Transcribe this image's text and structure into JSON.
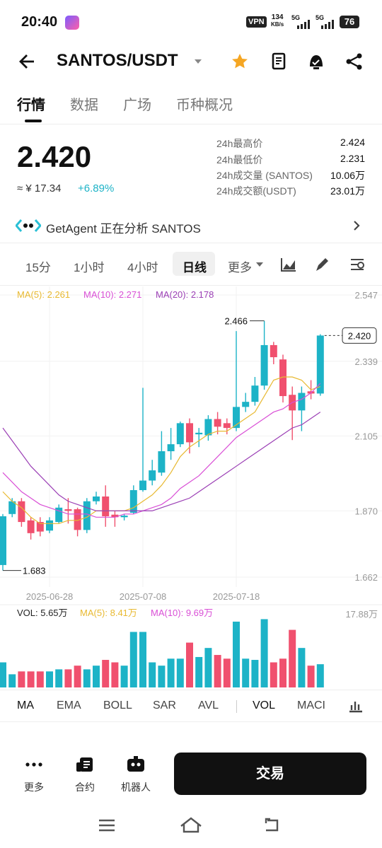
{
  "status_bar": {
    "time": "20:40",
    "vpn": "VPN",
    "speed": "134",
    "speed_unit": "KB/s",
    "net1": "5G",
    "net2": "5G",
    "battery": "76"
  },
  "header": {
    "pair": "SANTOS/USDT"
  },
  "tabs": [
    "行情",
    "数据",
    "广场",
    "币种概况"
  ],
  "price": {
    "last": "2.420",
    "cny": "≈ ¥ 17.34",
    "change": "+6.89%"
  },
  "stats": [
    {
      "label": "24h最高价",
      "value": "2.424"
    },
    {
      "label": "24h最低价",
      "value": "2.231"
    },
    {
      "label": "24h成交量 (SANTOS)",
      "value": "10.06万"
    },
    {
      "label": "24h成交额(USDT)",
      "value": "23.01万"
    }
  ],
  "agent_banner": "GetAgent 正在分析 SANTOS",
  "intervals": [
    "15分",
    "1小时",
    "4小时",
    "日线",
    "更多"
  ],
  "chart": {
    "type": "candlestick",
    "categories": [
      null,
      null,
      null,
      null,
      null,
      "2025-06-28",
      null,
      null,
      null,
      null,
      null,
      null,
      null,
      null,
      null,
      "2025-07-08",
      null,
      null,
      null,
      null,
      null,
      null,
      null,
      null,
      null,
      "2025-07-18",
      null,
      null,
      null,
      null,
      null,
      null,
      null,
      null,
      null
    ],
    "candles": {
      "open": [
        1.7,
        1.86,
        1.9,
        1.84,
        1.835,
        1.808,
        1.835,
        1.875,
        1.875,
        1.81,
        1.9,
        1.915,
        1.858,
        1.85,
        1.864,
        1.935,
        1.965,
        1.99,
        2.057,
        2.079,
        2.145,
        2.11,
        2.107,
        2.158,
        2.145,
        2.13,
        2.196,
        2.212,
        2.263,
        2.39,
        2.345,
        2.234,
        2.185,
        2.245,
        2.238
      ],
      "high": [
        1.86,
        1.91,
        1.91,
        1.85,
        1.85,
        1.85,
        1.89,
        1.91,
        1.88,
        1.91,
        1.93,
        1.95,
        1.87,
        1.86,
        1.95,
        2.256,
        2.03,
        2.12,
        2.13,
        2.15,
        2.16,
        2.13,
        2.17,
        2.18,
        2.16,
        2.434,
        2.24,
        2.29,
        2.466,
        2.4,
        2.36,
        2.26,
        2.26,
        2.28,
        2.424
      ],
      "low": [
        1.683,
        1.85,
        1.82,
        1.78,
        1.79,
        1.8,
        1.83,
        1.83,
        1.79,
        1.8,
        1.89,
        1.82,
        1.82,
        1.84,
        1.86,
        1.93,
        1.95,
        1.98,
        2.03,
        2.07,
        2.05,
        2.07,
        2.09,
        2.11,
        2.11,
        2.12,
        2.18,
        2.2,
        2.25,
        2.33,
        2.21,
        2.092,
        2.12,
        2.22,
        2.231
      ],
      "close": [
        1.853,
        1.9,
        1.835,
        1.8,
        1.805,
        1.84,
        1.88,
        1.87,
        1.81,
        1.9,
        1.915,
        1.853,
        1.85,
        1.855,
        1.935,
        1.965,
        1.997,
        2.057,
        2.079,
        2.145,
        2.085,
        2.115,
        2.158,
        2.134,
        2.13,
        2.196,
        2.212,
        2.263,
        2.39,
        2.352,
        2.23,
        2.185,
        2.24,
        2.238,
        2.42
      ]
    },
    "up_color": "#1db3c7",
    "down_color": "#f0506e",
    "ma_lines": [
      {
        "name": "MA(5): 2.261",
        "color": "#e8b931",
        "values": [
          1.93,
          1.9,
          1.88,
          1.85,
          1.83,
          1.83,
          1.83,
          1.84,
          1.84,
          1.85,
          1.87,
          1.87,
          1.87,
          1.87,
          1.88,
          1.9,
          1.92,
          1.95,
          1.99,
          2.04,
          2.07,
          2.09,
          2.11,
          2.12,
          2.12,
          2.14,
          2.16,
          2.18,
          2.23,
          2.28,
          2.29,
          2.29,
          2.28,
          2.25,
          2.26
        ]
      },
      {
        "name": "MA(10): 2.271",
        "color": "#d94fd6",
        "values": [
          1.99,
          1.96,
          1.93,
          1.91,
          1.89,
          1.88,
          1.87,
          1.86,
          1.86,
          1.86,
          1.85,
          1.85,
          1.85,
          1.86,
          1.86,
          1.87,
          1.88,
          1.89,
          1.91,
          1.94,
          1.96,
          1.98,
          2.01,
          2.04,
          2.07,
          2.1,
          2.12,
          2.14,
          2.16,
          2.18,
          2.19,
          2.21,
          2.22,
          2.24,
          2.27
        ]
      },
      {
        "name": "MA(20): 2.178",
        "color": "#9b3fb5",
        "values": [
          2.13,
          2.09,
          2.05,
          2.01,
          1.98,
          1.95,
          1.92,
          1.9,
          1.89,
          1.88,
          1.87,
          1.87,
          1.87,
          1.87,
          1.87,
          1.87,
          1.87,
          1.88,
          1.89,
          1.9,
          1.91,
          1.93,
          1.95,
          1.97,
          1.99,
          2.01,
          2.03,
          2.05,
          2.07,
          2.09,
          2.11,
          2.13,
          2.14,
          2.16,
          2.18
        ]
      }
    ],
    "ylim": [
      1.631,
      2.574
    ],
    "yticks": [
      1.662,
      {
        "value": 1.87,
        "label": "1.870"
      },
      2.105,
      2.339,
      2.547
    ],
    "max_label": 2.466,
    "min_label": 1.683,
    "last_price": {
      "value": 2.42,
      "label": "2.420"
    }
  },
  "volume": {
    "legend": [
      "VOL: 5.65万",
      "MA(5): 8.41万",
      "MA(10): 9.69万"
    ],
    "legend_colors": [
      "#222222",
      "#e8b931",
      "#d94fd6"
    ],
    "values": [
      6.1,
      3.2,
      3.9,
      3.9,
      3.9,
      3.9,
      4.4,
      4.4,
      5.3,
      4.4,
      5.3,
      6.7,
      6.1,
      5.3,
      13.5,
      13.5,
      6.1,
      5.3,
      7.0,
      7.0,
      10.9,
      7.4,
      9.6,
      7.9,
      7.0,
      16.0,
      7.0,
      6.7,
      16.6,
      6.1,
      7.0,
      14.0,
      9.6,
      5.3,
      5.65
    ],
    "ylim": [
      0,
      17.88
    ],
    "yticks": [
      {
        "value": 17.88,
        "label": "17.88万"
      }
    ]
  },
  "indicators": [
    "MA",
    "EMA",
    "BOLL",
    "SAR",
    "AVL",
    "VOL",
    "MACI"
  ],
  "bottom_bar": {
    "actions": [
      "更多",
      "合约",
      "机器人"
    ],
    "trade": "交易"
  }
}
